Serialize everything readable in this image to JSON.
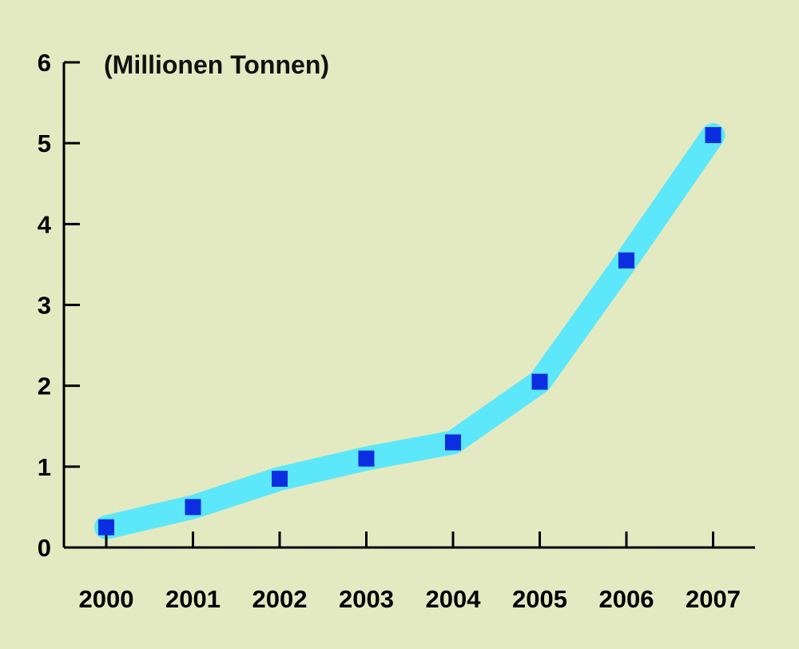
{
  "chart_data": {
    "type": "line",
    "title": "",
    "unit_label": "(Millionen Tonnen)",
    "xlabel": "",
    "ylabel": "",
    "categories": [
      "2000",
      "2001",
      "2002",
      "2003",
      "2004",
      "2005",
      "2006",
      "2007"
    ],
    "series": [
      {
        "values": [
          0.25,
          0.5,
          0.85,
          1.1,
          1.3,
          2.05,
          3.55,
          5.1
        ]
      }
    ],
    "ylim": [
      0,
      6
    ],
    "yticks": [
      "0",
      "1",
      "2",
      "3",
      "4",
      "5",
      "6"
    ],
    "grid": false,
    "legend": "none",
    "colors": {
      "background": "#e3eac1",
      "band": "#5de7fa",
      "marker": "#0a2ee0",
      "axis": "#000000"
    }
  }
}
